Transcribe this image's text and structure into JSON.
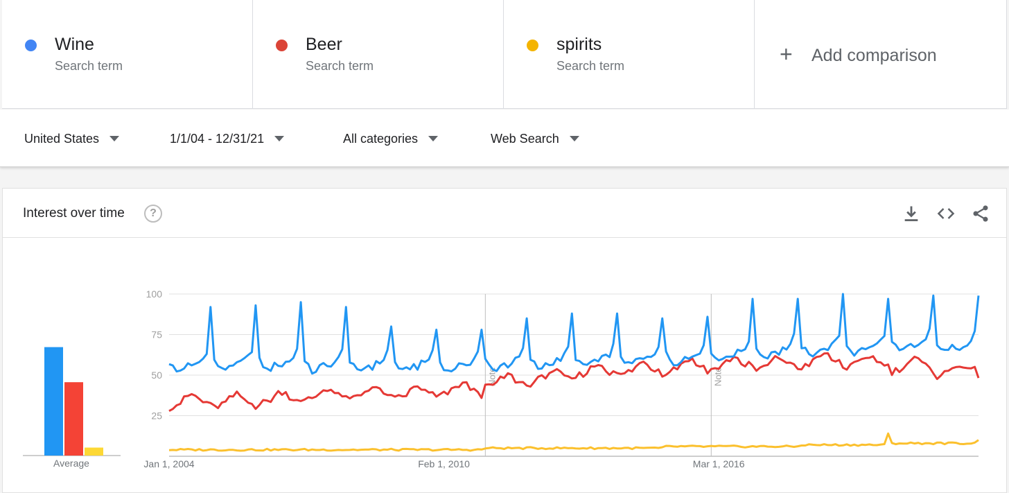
{
  "terms": [
    {
      "name": "Wine",
      "subtitle": "Search term",
      "color": "#4285f4"
    },
    {
      "name": "Beer",
      "subtitle": "Search term",
      "color": "#db4437"
    },
    {
      "name": "spirits",
      "subtitle": "Search term",
      "color": "#f4b400"
    }
  ],
  "add_comparison": {
    "icon": "plus-icon",
    "label": "Add comparison"
  },
  "filters": {
    "region": "United States",
    "date_range": "1/1/04 - 12/31/21",
    "category": "All categories",
    "search_type": "Web Search"
  },
  "card": {
    "title": "Interest over time",
    "icons": [
      "help-icon",
      "download-icon",
      "embed-icon",
      "share-icon"
    ]
  },
  "chart_data": [
    {
      "type": "bar",
      "categories": [
        "Average"
      ],
      "series": [
        {
          "name": "Wine",
          "color": "#2196f3",
          "values": [
            68
          ]
        },
        {
          "name": "Beer",
          "color": "#f44336",
          "values": [
            46
          ]
        },
        {
          "name": "spirits",
          "color": "#fdd835",
          "values": [
            5
          ]
        }
      ],
      "ylim": [
        0,
        100
      ]
    },
    {
      "type": "line",
      "x_tick_labels": [
        "Jan 1, 2004",
        "Feb 1, 2010",
        "Mar 1, 2016"
      ],
      "y_ticks": [
        100,
        75,
        50,
        25
      ],
      "ylim": [
        0,
        100
      ],
      "xlim": [
        "2004-01",
        "2021-12"
      ],
      "grid": true,
      "annotations": [
        {
          "date": "2011-01",
          "label": "Note"
        },
        {
          "date": "2016-01",
          "label": "Note"
        }
      ],
      "series": [
        {
          "name": "Wine",
          "color": "#2196f3",
          "monthly_base": [
            58,
            55,
            52,
            53,
            55,
            56,
            55,
            57,
            58,
            60,
            65,
            75
          ],
          "yearly_offset": [
            0,
            1,
            1,
            0,
            0,
            0,
            0,
            1,
            2,
            3,
            4,
            5,
            7,
            9,
            10,
            11,
            12,
            12
          ],
          "december_peaks": [
            92,
            93,
            95,
            92,
            80,
            78,
            78,
            85,
            88,
            88,
            85,
            86,
            97,
            97,
            100,
            97,
            99,
            99
          ]
        },
        {
          "name": "Beer",
          "color": "#e53935",
          "annual_trend": [
            33,
            33,
            35,
            37,
            38,
            38,
            40,
            45,
            48,
            52,
            53,
            55,
            56,
            56,
            58,
            57,
            55,
            52
          ],
          "seasonal": [
            -3,
            -2,
            -1,
            0,
            2,
            4,
            5,
            4,
            2,
            0,
            1,
            -2
          ]
        },
        {
          "name": "spirits",
          "color": "#fbc02d",
          "annual_trend": [
            4,
            4,
            4,
            4,
            4,
            4,
            4,
            5,
            5,
            5,
            5,
            6,
            6,
            6,
            7,
            7,
            8,
            8
          ],
          "peaks": [
            {
              "date": "2019-12",
              "value": 14
            },
            {
              "date": "2021-12",
              "value": 10
            }
          ]
        }
      ]
    }
  ]
}
